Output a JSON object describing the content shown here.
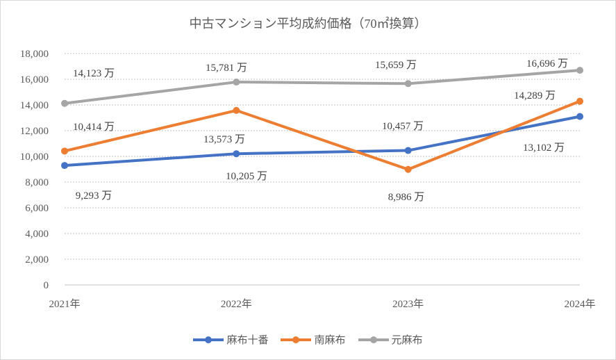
{
  "chart_data": {
    "type": "line",
    "title": "中古マンション平均成約価格（70㎡換算）",
    "categories": [
      "2021年",
      "2022年",
      "2023年",
      "2024年"
    ],
    "ylim": [
      0,
      18000
    ],
    "yticks": [
      "0",
      "2,000",
      "4,000",
      "6,000",
      "8,000",
      "10,000",
      "12,000",
      "14,000",
      "16,000",
      "18,000"
    ],
    "grid": true,
    "legend_position": "bottom",
    "label_unit": "万",
    "series": [
      {
        "name": "麻布十番",
        "color": "#4472c4",
        "values": [
          9293,
          10205,
          10457,
          13102
        ],
        "labels": [
          "9,293 万",
          "10,205 万",
          "10,457 万",
          "13,102 万"
        ]
      },
      {
        "name": "南麻布",
        "color": "#ed7d31",
        "values": [
          10414,
          13573,
          8986,
          14289
        ],
        "labels": [
          "10,414 万",
          "13,573 万",
          "8,986 万",
          "14,289 万"
        ]
      },
      {
        "name": "元麻布",
        "color": "#a5a5a5",
        "values": [
          14123,
          15781,
          15659,
          16696
        ],
        "labels": [
          "14,123 万",
          "15,781 万",
          "15,659 万",
          "16,696 万"
        ]
      }
    ]
  }
}
